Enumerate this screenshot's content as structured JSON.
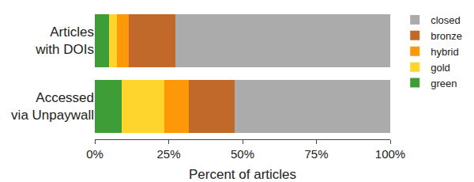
{
  "chart_data": {
    "type": "bar",
    "orientation": "horizontal",
    "stacked": true,
    "categories": [
      "Articles with DOIs",
      "Accessed via Unpaywall"
    ],
    "series": [
      {
        "name": "green",
        "color": "#3f9d37",
        "values": [
          4.8,
          9.2
        ]
      },
      {
        "name": "gold",
        "color": "#fdd52c",
        "values": [
          2.8,
          14.4
        ]
      },
      {
        "name": "hybrid",
        "color": "#fd9808",
        "values": [
          3.8,
          8.2
        ]
      },
      {
        "name": "bronze",
        "color": "#c0692a",
        "values": [
          16.0,
          15.5
        ]
      },
      {
        "name": "closed",
        "color": "#ababab",
        "values": [
          72.6,
          52.7
        ]
      }
    ],
    "x_label": "Percent of articles",
    "xlim": [
      0,
      100
    ],
    "xticks": [
      {
        "value": 0,
        "label": "0%"
      },
      {
        "value": 25,
        "label": "25%"
      },
      {
        "value": 50,
        "label": "50%"
      },
      {
        "value": 75,
        "label": "75%"
      },
      {
        "value": 100,
        "label": "100%"
      }
    ],
    "grid": false,
    "legend": "right"
  }
}
